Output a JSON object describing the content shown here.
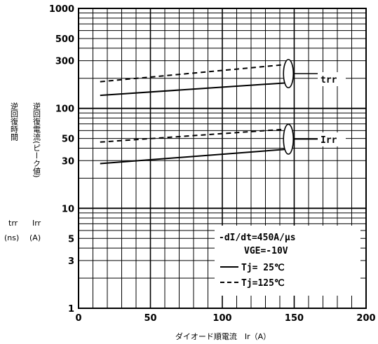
{
  "chart_data": {
    "type": "line",
    "x_axis": {
      "label": "ダイオード順電流　Ir（A）",
      "range": [
        0,
        200
      ],
      "ticks": [
        0,
        50,
        100,
        150,
        200
      ],
      "tick_labels": [
        "0",
        "50",
        "100",
        "150",
        "200"
      ]
    },
    "y_axis": {
      "scale": "log",
      "range": [
        1,
        1000
      ],
      "tick_labels": [
        {
          "value": 1000,
          "text": "1000"
        },
        {
          "value": 500,
          "text": "500"
        },
        {
          "value": 300,
          "text": "300"
        },
        {
          "value": 100,
          "text": "100"
        },
        {
          "value": 50,
          "text": "50"
        },
        {
          "value": 30,
          "text": "30"
        },
        {
          "value": 10,
          "text": "10"
        },
        {
          "value": 5,
          "text": "5"
        },
        {
          "value": 3,
          "text": "3"
        },
        {
          "value": 1,
          "text": "1"
        }
      ],
      "label_left": {
        "col1": "逆回復時間",
        "col2": "逆回復電流(ピーク値)",
        "sym1": "trr",
        "sym2": "Irr",
        "unit1": "(ns)",
        "unit2": "(A)"
      }
    },
    "grid": true,
    "series": [
      {
        "name": "trr",
        "tj": 25,
        "style": "solid",
        "x": [
          15,
          145
        ],
        "y": [
          135,
          180
        ]
      },
      {
        "name": "trr",
        "tj": 125,
        "style": "dashed",
        "x": [
          15,
          145
        ],
        "y": [
          185,
          275
        ]
      },
      {
        "name": "Irr",
        "tj": 25,
        "style": "solid",
        "x": [
          15,
          145
        ],
        "y": [
          28,
          39
        ]
      },
      {
        "name": "Irr",
        "tj": 125,
        "style": "dashed",
        "x": [
          15,
          145
        ],
        "y": [
          46,
          62
        ]
      }
    ],
    "curve_labels": [
      {
        "text": "trr",
        "group": "trr"
      },
      {
        "text": "Irr",
        "group": "Irr"
      }
    ],
    "conditions": [
      "-dI/dt=450A/μs",
      "VGE=-10V",
      "Tj= 25℃",
      "Tj=125℃"
    ]
  }
}
